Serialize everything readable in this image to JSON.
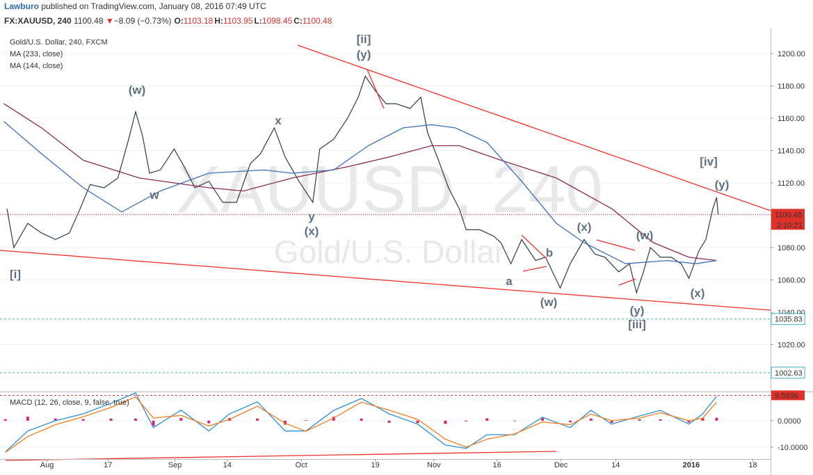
{
  "header": {
    "author": "Lawburo",
    "published": "published on TradingView.com, January 08, 2016 07:49 UTC",
    "symbol": "FX:XAUUSD, 240",
    "last": "1100.48",
    "arrow": "▼",
    "change": "−8.09 (−0.73%)",
    "ohlc": [
      {
        "label": "O:",
        "value": "1103.18"
      },
      {
        "label": "H:",
        "value": "1103.95"
      },
      {
        "label": "L:",
        "value": "1098.45"
      },
      {
        "label": "C:",
        "value": "1100.48"
      }
    ]
  },
  "chart_data": [
    {
      "type": "line",
      "watermark": [
        "XAUUSD, 240",
        "Gold/U.S. Dollar"
      ],
      "xlim": [
        0,
        100
      ],
      "ylim": [
        991.4,
        1215.9
      ],
      "yticks": [
        {
          "value": 1020,
          "label": "1020.00"
        },
        {
          "value": 1040,
          "label": "1040.00"
        },
        {
          "value": 1060,
          "label": "1060.00"
        },
        {
          "value": 1080,
          "label": "1080.00"
        },
        {
          "value": 1100,
          "label": "1100.00"
        },
        {
          "value": 1120,
          "label": "1120.00"
        },
        {
          "value": 1140,
          "label": "1140.00"
        },
        {
          "value": 1160,
          "label": "1160.00"
        },
        {
          "value": 1180,
          "label": "1180.00"
        },
        {
          "value": 1200,
          "label": "1200.00"
        }
      ],
      "grid": true,
      "series": [
        {
          "name": "Gold/U.S. Dollar, 240, FXCM",
          "color": "#2f3a44",
          "x": [
            0.9,
            1.8,
            3.6,
            5.4,
            7.2,
            9.0,
            10.4,
            11.7,
            13.5,
            15.3,
            16.7,
            17.6,
            18.5,
            19.4,
            20.8,
            22.6,
            23.9,
            25.3,
            27.1,
            28.9,
            30.7,
            32.5,
            33.8,
            35.6,
            37.0,
            38.8,
            40.6,
            41.5,
            43.3,
            45.1,
            46.5,
            47.4,
            48.7,
            50.1,
            51.4,
            53.2,
            54.6,
            55.5,
            56.9,
            58.2,
            59.6,
            60.5,
            62.3,
            64.1,
            65.0,
            66.3,
            67.7,
            69.5,
            70.8,
            72.7,
            74.0,
            75.8,
            77.2,
            78.5,
            80.3,
            81.7,
            82.6,
            83.5,
            84.4,
            85.7,
            87.1,
            88.4,
            89.4,
            90.7,
            91.6,
            92.5,
            93.0,
            93.2
          ],
          "values": [
            1104,
            1080,
            1095,
            1089,
            1085,
            1089,
            1104,
            1119,
            1117,
            1123,
            1147,
            1164,
            1149,
            1126,
            1128,
            1141,
            1130,
            1117,
            1121,
            1108,
            1108,
            1132,
            1138,
            1154,
            1136,
            1121,
            1108,
            1141,
            1147,
            1160,
            1173,
            1186,
            1177,
            1169,
            1169,
            1166,
            1173,
            1151,
            1134,
            1117,
            1104,
            1091,
            1091,
            1087,
            1083,
            1070,
            1085,
            1072,
            1074,
            1055,
            1070,
            1085,
            1076,
            1074,
            1065,
            1070,
            1052,
            1065,
            1080,
            1074,
            1074,
            1070,
            1061,
            1078,
            1085,
            1104,
            1111,
            1100.48
          ]
        },
        {
          "name": "MA (233, close)",
          "color": "#8b2a52",
          "x": [
            0.5,
            5.4,
            10.8,
            18.1,
            27.1,
            31.6,
            37.9,
            45.1,
            50.5,
            56.0,
            59.6,
            65.0,
            72.2,
            79.4,
            84.8,
            89.4,
            93.0
          ],
          "values": [
            1169,
            1154,
            1134,
            1123,
            1117,
            1115,
            1123,
            1130,
            1136,
            1143,
            1143,
            1134,
            1123,
            1104,
            1083,
            1074,
            1072
          ]
        },
        {
          "name": "MA (144, close)",
          "color": "#3d6eb4",
          "x": [
            0.5,
            5.4,
            10.8,
            15.8,
            20.8,
            27.1,
            34.3,
            37.9,
            43.3,
            47.8,
            52.3,
            56.0,
            59.1,
            63.2,
            67.7,
            72.2,
            75.8,
            81.2,
            86.6,
            90.3,
            93.0
          ],
          "values": [
            1158,
            1138,
            1117,
            1102,
            1115,
            1126,
            1128,
            1126,
            1128,
            1143,
            1154,
            1156,
            1154,
            1145,
            1121,
            1095,
            1083,
            1070,
            1072,
            1070,
            1072
          ]
        }
      ],
      "last_price": 1100.48,
      "countdown": "2:10:21",
      "levels": [
        1035.83,
        1002.63
      ],
      "annotations": [
        "[ii]",
        "(y)",
        "(w)",
        "x",
        "w",
        "y",
        "(x)",
        "[i]",
        "a",
        "b",
        "(w)",
        "(x)",
        "(w)",
        "(y)",
        "[iii]",
        "(x)",
        "[iv]",
        "(y)"
      ]
    },
    {
      "type": "macd",
      "title": "MACD (12, 26, close, 9, false, true)",
      "xlim": [
        0,
        100
      ],
      "ylim": [
        -14.5,
        10.5
      ],
      "yticks": [
        {
          "value": 0,
          "label": "0.0000"
        },
        {
          "value": -10,
          "label": "-10.0000"
        }
      ],
      "level": 9.5936,
      "xticks": [
        {
          "value": 6.1,
          "label": "Aug"
        },
        {
          "value": 14.0,
          "label": "17"
        },
        {
          "value": 22.7,
          "label": "Sep"
        },
        {
          "value": 29.5,
          "label": "14"
        },
        {
          "value": 39.1,
          "label": "Oct"
        },
        {
          "value": 48.7,
          "label": "19"
        },
        {
          "value": 56.3,
          "label": "Nov"
        },
        {
          "value": 64.5,
          "label": "16"
        },
        {
          "value": 72.8,
          "label": "Dec"
        },
        {
          "value": 79.9,
          "label": "14"
        },
        {
          "value": 89.7,
          "label": "2016"
        },
        {
          "value": 97.7,
          "label": "18"
        }
      ],
      "x": [
        0.7,
        3.6,
        7.2,
        10.8,
        14.4,
        17.6,
        19.9,
        23.5,
        27.1,
        29.8,
        33.4,
        37.0,
        39.7,
        43.3,
        46.9,
        50.5,
        54.2,
        57.8,
        60.5,
        63.2,
        66.8,
        70.4,
        74.0,
        76.7,
        79.4,
        83.0,
        85.7,
        89.4,
        91.2,
        93.0
      ],
      "series": [
        {
          "color": "#2d8fd5",
          "values": [
            -11.8,
            -3.9,
            0,
            2.6,
            6.6,
            10.5,
            -2.6,
            4,
            -3.9,
            2.6,
            7.1,
            -3.9,
            -3.9,
            3.9,
            8.4,
            2.6,
            -1.3,
            -9.2,
            -10.5,
            -5.3,
            -5.3,
            1.3,
            -2.6,
            3.9,
            -1.3,
            1.8,
            3.9,
            -1.3,
            2.6,
            9.2
          ]
        },
        {
          "color": "#f57c1f",
          "values": [
            -12,
            -6,
            -1.5,
            1.5,
            5,
            9,
            1,
            2,
            -2,
            0.5,
            5.5,
            -1,
            -4,
            1,
            7,
            4,
            0.5,
            -7,
            -10,
            -7,
            -5,
            -0.5,
            -1.5,
            2.5,
            0,
            1,
            3,
            0,
            1,
            7
          ]
        },
        {
          "color": "#d6246e",
          "values": [
            0.6,
            1.5,
            0.8,
            0.6,
            0.8,
            0.8,
            -2,
            1,
            -1,
            1,
            0.8,
            -1.5,
            0.2,
            1.5,
            0.8,
            -0.8,
            -0.9,
            -1.2,
            -0.3,
            0.9,
            -0.2,
            1,
            -0.6,
            0.8,
            -0.8,
            0.5,
            0.5,
            -0.7,
            0.9,
            1.1
          ]
        }
      ]
    }
  ]
}
